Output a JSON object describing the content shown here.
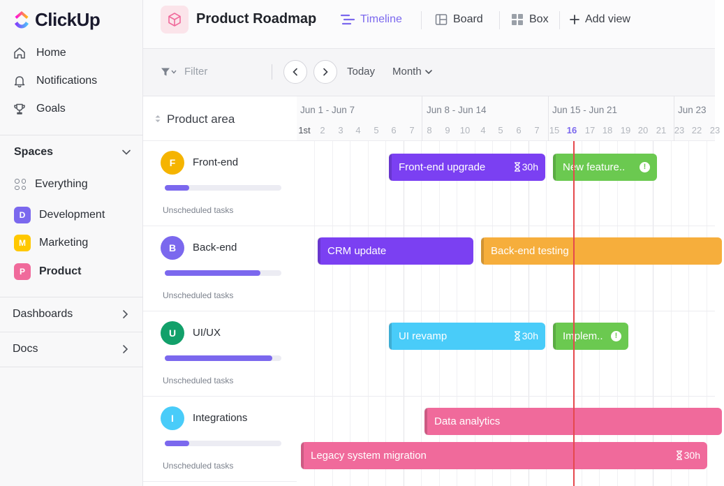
{
  "app": {
    "name": "ClickUp"
  },
  "sidebar": {
    "nav": [
      {
        "label": "Home",
        "icon": "home-icon"
      },
      {
        "label": "Notifications",
        "icon": "bell-icon"
      },
      {
        "label": "Goals",
        "icon": "trophy-icon"
      }
    ],
    "spaces_label": "Spaces",
    "everything_label": "Everything",
    "spaces": [
      {
        "letter": "D",
        "label": "Development",
        "color": "#7b68ee"
      },
      {
        "letter": "M",
        "label": "Marketing",
        "color": "#ffc800"
      },
      {
        "letter": "P",
        "label": "Product",
        "color": "#f06a9b",
        "active": true
      }
    ],
    "sections": [
      {
        "label": "Dashboards"
      },
      {
        "label": "Docs"
      }
    ]
  },
  "header": {
    "title": "Product Roadmap",
    "views": [
      {
        "label": "Timeline",
        "icon": "timeline-icon",
        "active": true
      },
      {
        "label": "Board",
        "icon": "board-icon"
      },
      {
        "label": "Box",
        "icon": "box-icon"
      },
      {
        "label": "Add view",
        "icon": "plus-icon"
      }
    ]
  },
  "toolbar": {
    "filter_placeholder": "Filter",
    "today_label": "Today",
    "month_label": "Month"
  },
  "areas": {
    "column_label": "Product area",
    "unscheduled_label": "Unscheduled tasks",
    "items": [
      {
        "letter": "F",
        "name": "Front-end",
        "color": "#f5b400",
        "progress": 0.21
      },
      {
        "letter": "B",
        "name": "Back-end",
        "color": "#7b68ee",
        "progress": 0.82
      },
      {
        "letter": "U",
        "name": "UI/UX",
        "color": "#12a06a",
        "progress": 0.92
      },
      {
        "letter": "I",
        "name": "Integrations",
        "color": "#49ccf9",
        "progress": 0.21
      }
    ]
  },
  "timeline": {
    "weeks": [
      "Jun 1 - Jun 7",
      "Jun 8 - Jun 14",
      "Jun 15 - Jun 21",
      "Jun 23"
    ],
    "first_day_label": "1st",
    "days": [
      "2",
      "3",
      "4",
      "5",
      "6",
      "7",
      "8",
      "9",
      "10",
      "4",
      "5",
      "6",
      "7",
      "15",
      "16",
      "17",
      "18",
      "19",
      "20",
      "21",
      "23",
      "22",
      "23"
    ],
    "today_day": "16",
    "colors": {
      "purple": "#7b40f2",
      "green": "#6bc950",
      "orange": "#f6ae3c",
      "blue": "#49ccf9",
      "pink": "#f06a9b",
      "today": "#e5484d"
    },
    "tasks": [
      {
        "label": "Front-end upgrade",
        "hours": "30h",
        "color": "#7b40f2"
      },
      {
        "label": "New feature..",
        "color": "#6bc950",
        "alert": true
      },
      {
        "label": "CRM update",
        "color": "#7b40f2"
      },
      {
        "label": "Back-end testing",
        "color": "#f6ae3c"
      },
      {
        "label": "UI revamp",
        "hours": "30h",
        "color": "#49ccf9"
      },
      {
        "label": "Implem..",
        "color": "#6bc950",
        "alert": true
      },
      {
        "label": "Data analytics",
        "color": "#f06a9b"
      },
      {
        "label": "Legacy system migration",
        "hours": "30h",
        "color": "#f06a9b"
      }
    ]
  }
}
